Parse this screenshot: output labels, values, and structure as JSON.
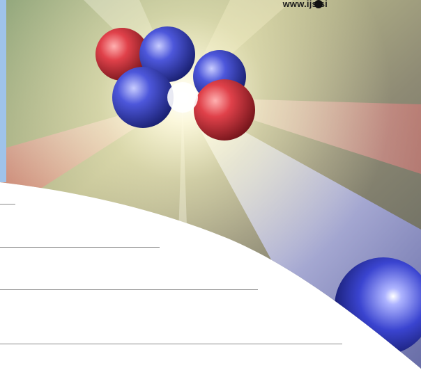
{
  "header": {
    "url": "www.ijs.si"
  },
  "colors": {
    "side_strip": "#9fc3ea",
    "rule_lines": "#8a8a8a",
    "atom_red": "#d8404a",
    "atom_blue": "#4a55d8",
    "glow": "#fffde8"
  },
  "graphic": {
    "icon": "atomic-nucleus-illustration"
  },
  "form_lines": {
    "count": 4
  }
}
